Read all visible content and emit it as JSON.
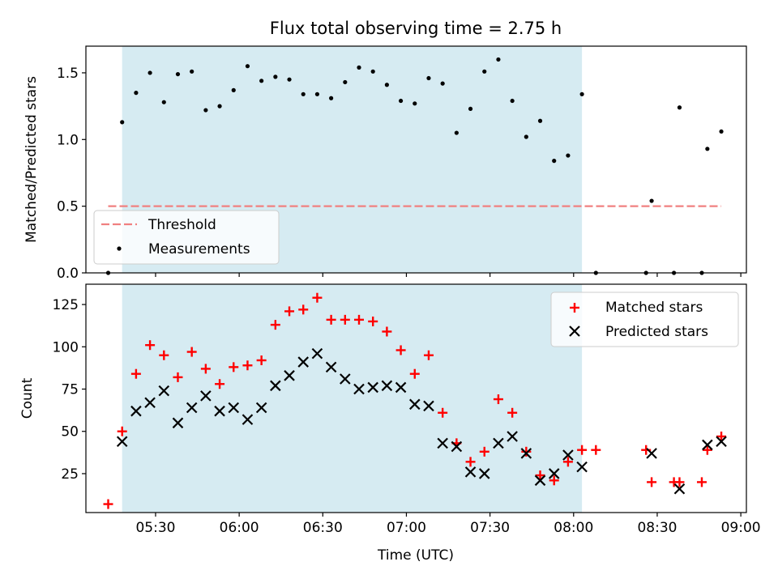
{
  "chart_data": [
    {
      "type": "scatter",
      "title": "Flux total observing time = 2.75 h",
      "xlabel": "",
      "ylabel": "Matched/Predicted stars",
      "ylim": [
        0,
        1.7
      ],
      "yticks": [
        "0.0",
        "0.5",
        "1.0",
        "1.5"
      ],
      "shaded_span": [
        "05:18",
        "08:03"
      ],
      "threshold": {
        "name": "Threshold",
        "value": 0.5,
        "x_start": "05:13",
        "x_end": "08:53",
        "color": "#f08080"
      },
      "legend": {
        "position": "lower-left"
      },
      "series": [
        {
          "name": "Measurements",
          "color": "#000000",
          "marker": "dot",
          "x": [
            "05:13",
            "05:18",
            "05:23",
            "05:28",
            "05:33",
            "05:38",
            "05:43",
            "05:48",
            "05:53",
            "05:58",
            "06:03",
            "06:08",
            "06:13",
            "06:18",
            "06:23",
            "06:28",
            "06:33",
            "06:38",
            "06:43",
            "06:48",
            "06:53",
            "06:58",
            "07:03",
            "07:08",
            "07:13",
            "07:18",
            "07:23",
            "07:28",
            "07:33",
            "07:38",
            "07:43",
            "07:48",
            "07:53",
            "07:58",
            "08:03",
            "08:08",
            "08:26",
            "08:28",
            "08:36",
            "08:38",
            "08:46",
            "08:48",
            "08:53"
          ],
          "y": [
            0.0,
            1.13,
            1.35,
            1.5,
            1.28,
            1.49,
            1.51,
            1.22,
            1.25,
            1.37,
            1.55,
            1.44,
            1.47,
            1.45,
            1.34,
            1.34,
            1.31,
            1.43,
            1.54,
            1.51,
            1.41,
            1.29,
            1.27,
            1.46,
            1.42,
            1.05,
            1.23,
            1.51,
            1.6,
            1.29,
            1.02,
            1.14,
            0.84,
            0.88,
            1.34,
            0.0,
            0.0,
            0.54,
            0.0,
            1.24,
            0.0,
            0.93,
            1.06
          ]
        }
      ]
    },
    {
      "type": "scatter",
      "title": "",
      "xlabel": "Time (UTC)",
      "ylabel": "Count",
      "ylim": [
        2,
        137
      ],
      "yticks": [
        "25",
        "50",
        "75",
        "100",
        "125"
      ],
      "xticks": [
        "05:30",
        "06:00",
        "06:30",
        "07:00",
        "07:30",
        "08:00",
        "08:30",
        "09:00"
      ],
      "xlim": [
        "05:05",
        "09:02"
      ],
      "shaded_span": [
        "05:18",
        "08:03"
      ],
      "legend": {
        "position": "upper-right"
      },
      "series": [
        {
          "name": "Matched stars",
          "color": "#ff0000",
          "marker": "plus",
          "x": [
            "05:13",
            "05:18",
            "05:23",
            "05:28",
            "05:33",
            "05:38",
            "05:43",
            "05:48",
            "05:53",
            "05:58",
            "06:03",
            "06:08",
            "06:13",
            "06:18",
            "06:23",
            "06:28",
            "06:33",
            "06:38",
            "06:43",
            "06:48",
            "06:53",
            "06:58",
            "07:03",
            "07:08",
            "07:13",
            "07:18",
            "07:23",
            "07:28",
            "07:33",
            "07:38",
            "07:43",
            "07:48",
            "07:53",
            "07:58",
            "08:03",
            "08:08",
            "08:26",
            "08:28",
            "08:36",
            "08:38",
            "08:46",
            "08:48",
            "08:53"
          ],
          "y": [
            7,
            50,
            84,
            101,
            95,
            82,
            97,
            87,
            78,
            88,
            89,
            92,
            113,
            121,
            122,
            129,
            116,
            116,
            116,
            115,
            109,
            98,
            84,
            95,
            61,
            43,
            32,
            38,
            69,
            61,
            38,
            24,
            21,
            32,
            39,
            39,
            39,
            20,
            20,
            20,
            20,
            39,
            47
          ]
        },
        {
          "name": "Predicted stars",
          "color": "#000000",
          "marker": "x",
          "x": [
            "05:18",
            "05:23",
            "05:28",
            "05:33",
            "05:38",
            "05:43",
            "05:48",
            "05:53",
            "05:58",
            "06:03",
            "06:08",
            "06:13",
            "06:18",
            "06:23",
            "06:28",
            "06:33",
            "06:38",
            "06:43",
            "06:48",
            "06:53",
            "06:58",
            "07:03",
            "07:08",
            "07:13",
            "07:18",
            "07:23",
            "07:28",
            "07:33",
            "07:38",
            "07:43",
            "07:48",
            "07:53",
            "07:58",
            "08:03",
            "08:28",
            "08:38",
            "08:48",
            "08:53"
          ],
          "y": [
            44,
            62,
            67,
            74,
            55,
            64,
            71,
            62,
            64,
            57,
            64,
            77,
            83,
            91,
            96,
            88,
            81,
            75,
            76,
            77,
            76,
            66,
            65,
            43,
            41,
            26,
            25,
            43,
            47,
            37,
            21,
            25,
            36,
            29,
            37,
            16,
            42,
            44
          ]
        }
      ]
    }
  ]
}
